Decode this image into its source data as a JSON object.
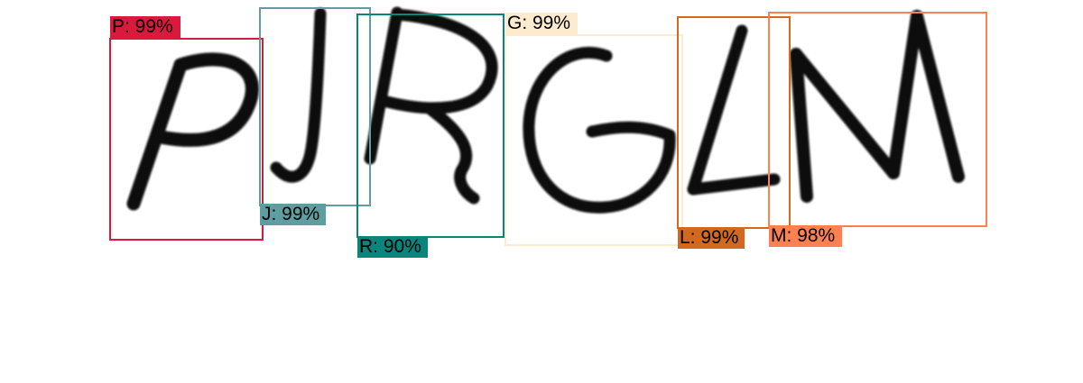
{
  "detections": [
    {
      "char": "P",
      "label": "P: 99%",
      "confidence": 0.99,
      "color": "#d91a3c"
    },
    {
      "char": "J",
      "label": "J: 99%",
      "confidence": 0.99,
      "color": "#5f9ea0"
    },
    {
      "char": "R",
      "label": "R: 90%",
      "confidence": 0.9,
      "color": "#08867d"
    },
    {
      "char": "G",
      "label": "G: 99%",
      "confidence": 0.99,
      "color": "#fdebd0"
    },
    {
      "char": "L",
      "label": "L: 99%",
      "confidence": 0.99,
      "color": "#d2691e"
    },
    {
      "char": "M",
      "label": "M: 98%",
      "confidence": 0.98,
      "color": "#ff8050"
    }
  ]
}
